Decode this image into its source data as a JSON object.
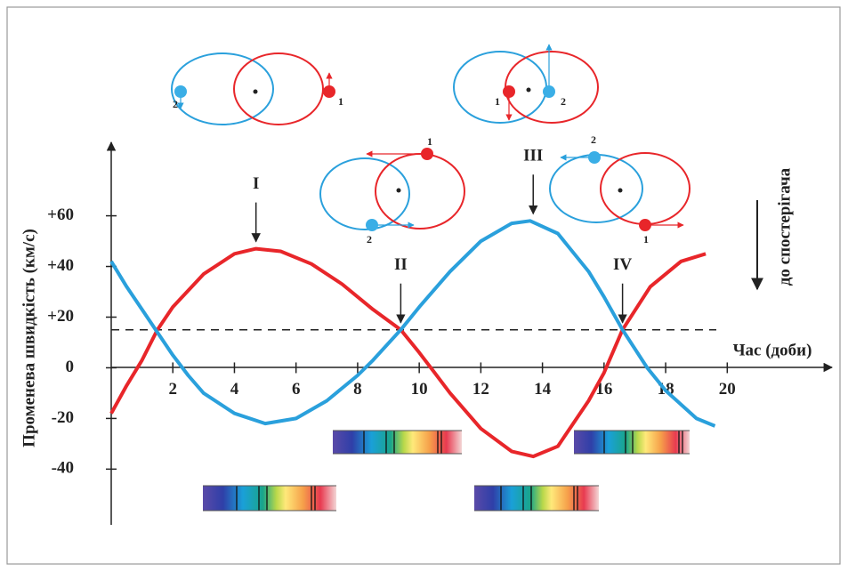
{
  "chart_data": {
    "type": "line",
    "y_label": "Променева швидкість (км/с)",
    "x_label": "Час (доби)",
    "direction_label": "до спостерігача",
    "orbit_labels": [
      "1",
      "2"
    ],
    "xlim": [
      0,
      23.4
    ],
    "ylim": [
      -62,
      89
    ],
    "xticks": [
      2,
      4,
      6,
      8,
      10,
      12,
      14,
      16,
      18,
      20
    ],
    "yticks": [
      {
        "value": 60,
        "label": "+60"
      },
      {
        "value": 40,
        "label": "+40"
      },
      {
        "value": 20,
        "label": "+20"
      },
      0,
      -20,
      -40
    ],
    "reference_line": 15,
    "annotations": [
      {
        "text": "I",
        "x": 4.7
      },
      {
        "text": "II",
        "x": 9.4
      },
      {
        "text": "III",
        "x": 13.7
      },
      {
        "text": "IV",
        "x": 16.6
      }
    ],
    "series": [
      {
        "color": "#e8262a",
        "x": [
          0,
          0.5,
          1,
          1.5,
          2,
          3,
          4,
          4.7,
          5.5,
          6.5,
          7.5,
          8.5,
          9.4,
          10,
          10.5,
          11,
          12,
          13,
          13.7,
          14.5,
          15.5,
          16,
          16.6,
          17.5,
          18.5,
          19.3
        ],
        "values": [
          -18,
          -7,
          3,
          15,
          24,
          37,
          45,
          47,
          46,
          41,
          33,
          23,
          15,
          6,
          -2,
          -10,
          -24,
          -33,
          -35,
          -31,
          -13,
          -2,
          15,
          32,
          42,
          45
        ]
      },
      {
        "color": "#2aa0dc",
        "x": [
          0,
          0.5,
          1,
          1.5,
          2,
          2.5,
          3,
          4,
          5,
          6,
          7,
          8,
          8.5,
          9.4,
          10,
          11,
          12,
          13,
          13.6,
          14.5,
          15.5,
          16,
          16.6,
          17.4,
          18,
          19,
          19.6
        ],
        "values": [
          42,
          32,
          23,
          14,
          5,
          -3,
          -10,
          -18,
          -22,
          -20,
          -13,
          -3,
          3,
          15,
          24,
          38,
          50,
          57,
          58,
          53,
          38,
          28,
          15,
          0,
          -9,
          -20,
          -23
        ]
      }
    ]
  }
}
